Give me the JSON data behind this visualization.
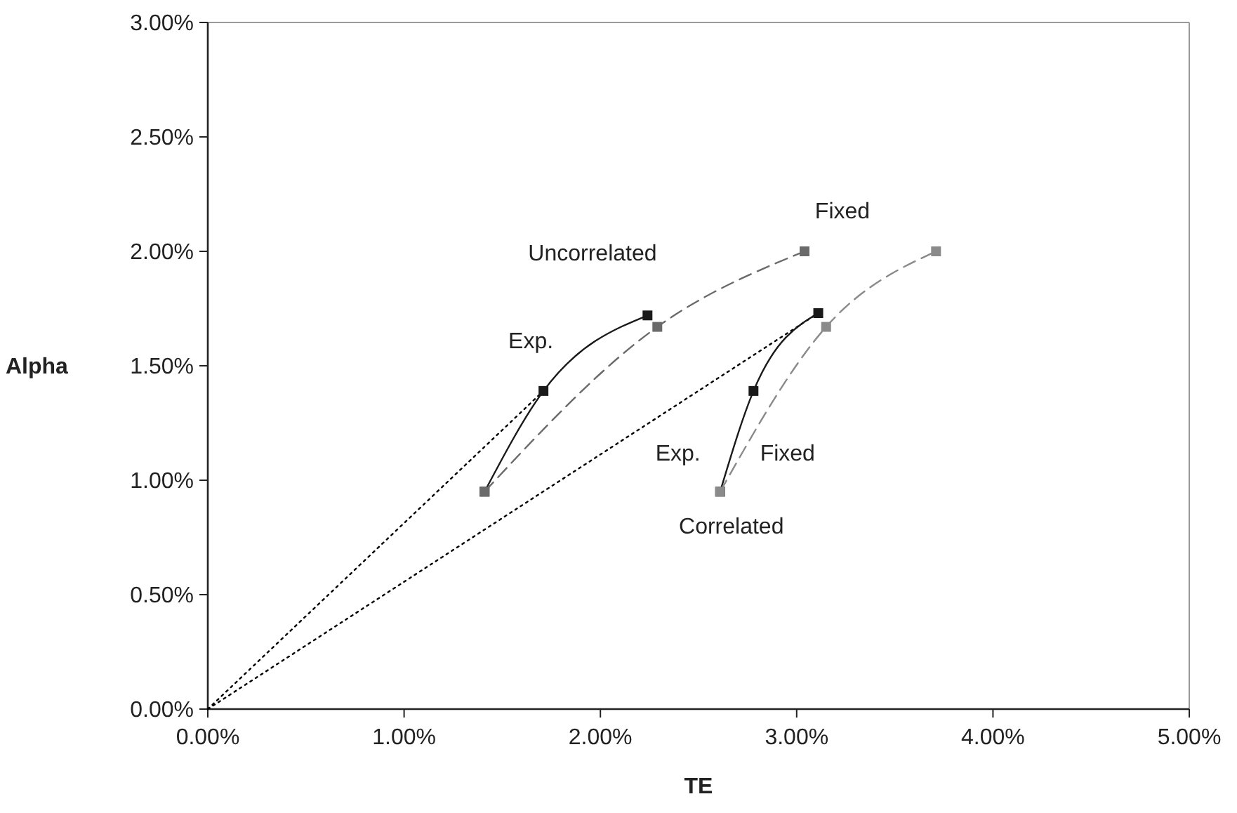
{
  "chart_data": {
    "type": "line",
    "xlabel": "TE",
    "ylabel": "Alpha",
    "xlim": [
      0,
      5
    ],
    "ylim": [
      0,
      3
    ],
    "xticks": [
      {
        "value": 0,
        "label": "0.00%"
      },
      {
        "value": 1,
        "label": "1.00%"
      },
      {
        "value": 2,
        "label": "2.00%"
      },
      {
        "value": 3,
        "label": "3.00%"
      },
      {
        "value": 4,
        "label": "4.00%"
      },
      {
        "value": 5,
        "label": "5.00%"
      }
    ],
    "yticks": [
      {
        "value": 0,
        "label": "0.00%"
      },
      {
        "value": 0.5,
        "label": "0.50%"
      },
      {
        "value": 1,
        "label": "1.00%"
      },
      {
        "value": 1.5,
        "label": "1.50%"
      },
      {
        "value": 2,
        "label": "2.00%"
      },
      {
        "value": 2.5,
        "label": "2.50%"
      },
      {
        "value": 3,
        "label": "3.00%"
      }
    ],
    "grid": false,
    "legend": false,
    "series": [
      {
        "color": "#000000",
        "x": [
          0,
          1.71
        ],
        "values": [
          0,
          1.39
        ],
        "line_style": "dotted",
        "marker": "none"
      },
      {
        "color": "#000000",
        "x": [
          0,
          3.11
        ],
        "values": [
          0,
          1.73
        ],
        "line_style": "dotted",
        "marker": "none"
      },
      {
        "name": "Exp.",
        "color": "#1a1a1a",
        "x": [
          1.41,
          1.71,
          2.24
        ],
        "values": [
          0.95,
          1.39,
          1.72
        ],
        "line_style": "solid",
        "marker": "square"
      },
      {
        "name": "Fixed",
        "color": "#6a6a6a",
        "x": [
          1.41,
          2.29,
          3.04
        ],
        "values": [
          0.95,
          1.67,
          2.0
        ],
        "line_style": "dashed",
        "marker": "square"
      },
      {
        "name": "Exp.",
        "color": "#1a1a1a",
        "x": [
          2.61,
          2.78,
          3.11
        ],
        "values": [
          0.95,
          1.39,
          1.73
        ],
        "line_style": "solid",
        "marker": "square"
      },
      {
        "name": "Fixed",
        "color": "#8a8a8a",
        "x": [
          2.61,
          3.15,
          3.71
        ],
        "values": [
          0.95,
          1.67,
          2.0
        ],
        "line_style": "dashed",
        "marker": "square"
      }
    ],
    "annotations": [
      "Uncorrelated",
      "Correlated"
    ]
  }
}
